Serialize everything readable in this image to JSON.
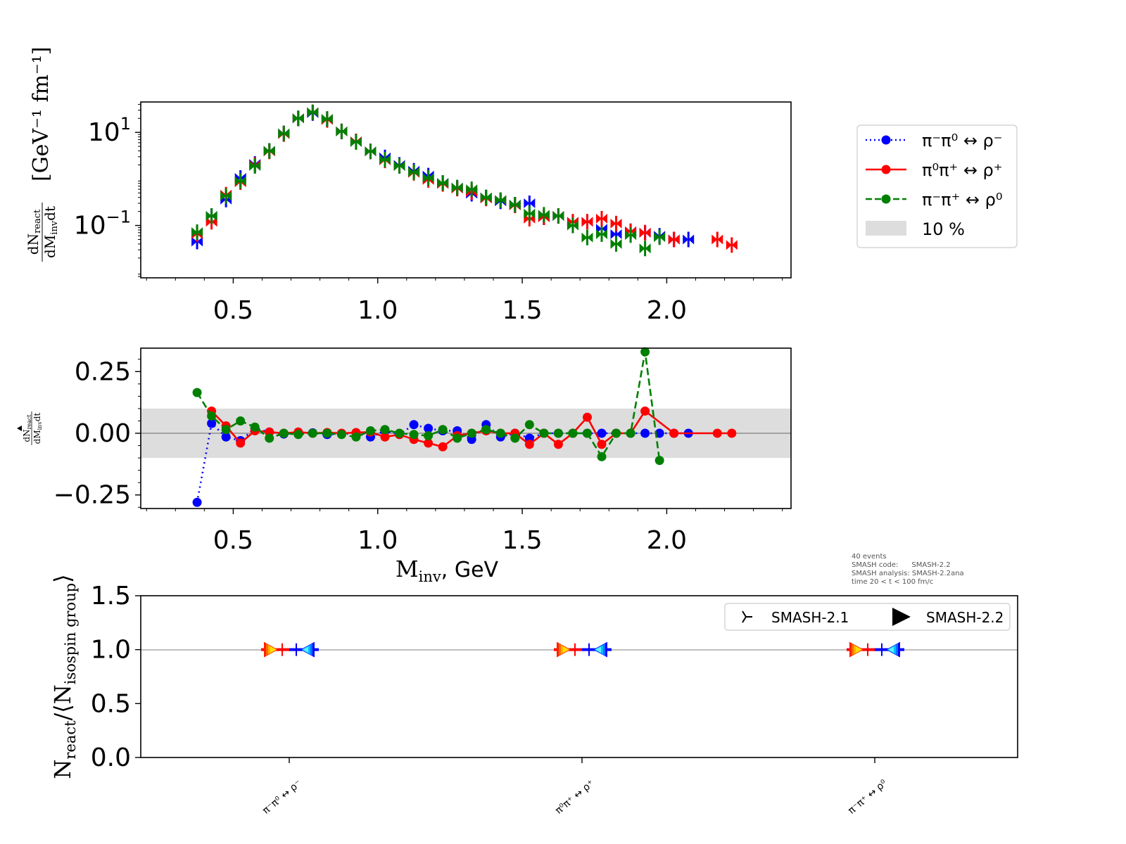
{
  "colors": {
    "series_1": "#0000ff",
    "series_2": "#ff0000",
    "series_3": "#008000",
    "band": "#dddddd",
    "zero_line": "#808080",
    "axes": "#000000"
  },
  "legend": {
    "entries": [
      {
        "label": "π⁻π⁰ ↔ ρ⁻",
        "style": "dotted",
        "color": "#0000ff"
      },
      {
        "label": "π⁰π⁺ ↔ ρ⁺",
        "style": "solid",
        "color": "#ff0000"
      },
      {
        "label": "π⁻π⁺ ↔ ρ⁰",
        "style": "dashed",
        "color": "#008000"
      },
      {
        "label": "10 %",
        "style": "patch",
        "color": "#dddddd"
      }
    ]
  },
  "version_legend": {
    "entries": [
      {
        "label": "SMASH-2.1",
        "marker": "tri_right-icon"
      },
      {
        "label": "SMASH-2.2",
        "marker": "triangle_right-icon"
      }
    ]
  },
  "info_text": [
    "40 events",
    "SMASH code:      SMASH-2.2",
    "SMASH analysis: SMASH-2.2ana",
    "time 20 < t < 100 fm/c"
  ],
  "chart_data": [
    {
      "type": "scatter",
      "panel": "top",
      "yscale": "log",
      "ylim": [
        0.0075,
        45
      ],
      "xlim": [
        0.18,
        2.43
      ],
      "ylabel_main": "dN",
      "ylabel_main_sub": "react",
      "ylabel_den": "dM",
      "ylabel_den_sub": "inv",
      "ylabel_den_tail": "dt",
      "ylabel_units": "[GeV⁻¹ fm⁻¹]",
      "y_tick_labels": [
        {
          "v": 10,
          "base": "10",
          "exp": "1"
        },
        {
          "v": 0.1,
          "base": "10",
          "exp": "−1"
        }
      ],
      "x_tick_labels": [
        "0.5",
        "1.0",
        "1.5",
        "2.0"
      ],
      "x_ticks": [
        0.5,
        1.0,
        1.5,
        2.0
      ],
      "series": [
        {
          "name": "π⁻π⁰ ↔ ρ⁻",
          "x": [
            0.375,
            0.425,
            0.475,
            0.525,
            0.575,
            0.625,
            0.675,
            0.725,
            0.775,
            0.825,
            0.875,
            0.925,
            0.975,
            1.025,
            1.075,
            1.125,
            1.175,
            1.225,
            1.275,
            1.325,
            1.375,
            1.425,
            1.475,
            1.525,
            1.575,
            1.625,
            1.675,
            1.725,
            1.775,
            1.825,
            1.875,
            1.925,
            1.975,
            2.025,
            2.075
          ],
          "y": [
            0.045,
            0.16,
            0.36,
            1.05,
            2.1,
            4.0,
            9.5,
            20,
            26,
            19,
            10.5,
            6.4,
            3.9,
            2.9,
            2.0,
            1.5,
            1.18,
            0.82,
            0.65,
            0.48,
            0.4,
            0.33,
            0.28,
            0.3,
            0.15,
            0.16,
            0.12,
            0.12,
            0.085,
            0.065,
            0.075,
            0.07,
            0.06,
            0.05,
            0.05
          ]
        },
        {
          "name": "π⁰π⁺ ↔ ρ⁺",
          "x": [
            0.375,
            0.425,
            0.475,
            0.525,
            0.575,
            0.625,
            0.675,
            0.725,
            0.775,
            0.825,
            0.875,
            0.925,
            0.975,
            1.025,
            1.075,
            1.125,
            1.175,
            1.225,
            1.275,
            1.325,
            1.375,
            1.425,
            1.475,
            1.525,
            1.575,
            1.625,
            1.675,
            1.725,
            1.775,
            1.825,
            1.875,
            1.925,
            2.025,
            2.175,
            2.225
          ],
          "y": [
            0.065,
            0.12,
            0.46,
            0.85,
            2.0,
            3.9,
            9.2,
            20,
            27,
            18.5,
            10.5,
            6.4,
            3.9,
            2.5,
            1.9,
            1.35,
            0.95,
            0.78,
            0.62,
            0.52,
            0.38,
            0.35,
            0.27,
            0.14,
            0.15,
            0.16,
            0.12,
            0.12,
            0.14,
            0.11,
            0.075,
            0.07,
            0.05,
            0.05,
            0.038
          ]
        },
        {
          "name": "π⁻π⁺ ↔ ρ⁰",
          "x": [
            0.375,
            0.425,
            0.475,
            0.525,
            0.575,
            0.625,
            0.675,
            0.725,
            0.775,
            0.825,
            0.875,
            0.925,
            0.975,
            1.025,
            1.075,
            1.125,
            1.175,
            1.225,
            1.275,
            1.325,
            1.375,
            1.425,
            1.475,
            1.525,
            1.575,
            1.625,
            1.675,
            1.725,
            1.775,
            1.825,
            1.875,
            1.925,
            1.975
          ],
          "y": [
            0.072,
            0.16,
            0.43,
            0.9,
            1.9,
            4.0,
            9.5,
            20,
            27,
            19.5,
            10.5,
            6.2,
            3.9,
            2.6,
            1.9,
            1.4,
            1.05,
            0.82,
            0.65,
            0.6,
            0.4,
            0.35,
            0.28,
            0.18,
            0.17,
            0.16,
            0.1,
            0.055,
            0.065,
            0.04,
            0.062,
            0.032,
            0.056
          ]
        }
      ]
    },
    {
      "type": "line",
      "panel": "middle",
      "ylim": [
        -0.305,
        0.345
      ],
      "xlim": [
        0.18,
        2.43
      ],
      "band": [
        -0.1,
        0.1
      ],
      "xlabel": "M",
      "xlabel_sub": "inv",
      "xlabel_tail": ", GeV",
      "ylabel_main": "dN",
      "ylabel_main_sub": "react",
      "ylabel_den": "dM",
      "ylabel_den_sub": "inv",
      "ylabel_den_tail": "dt",
      "y_ticks": [
        -0.25,
        0.0,
        0.25
      ],
      "y_tick_labels": [
        "−0.25",
        "0.00",
        "0.25"
      ],
      "x_ticks": [
        0.5,
        1.0,
        1.5,
        2.0
      ],
      "x_tick_labels": [
        "0.5",
        "1.0",
        "1.5",
        "2.0"
      ],
      "series": [
        {
          "name": "π⁻π⁰ ↔ ρ⁻",
          "x": [
            0.375,
            0.425,
            0.475,
            0.525,
            0.575,
            0.625,
            0.675,
            0.725,
            0.775,
            0.825,
            0.875,
            0.925,
            0.975,
            1.025,
            1.075,
            1.125,
            1.175,
            1.225,
            1.275,
            1.325,
            1.375,
            1.425,
            1.475,
            1.525,
            1.575,
            1.625,
            1.675,
            1.725,
            1.775,
            1.825,
            1.875,
            1.925,
            1.975,
            2.025,
            2.075
          ],
          "y": [
            -0.28,
            0.04,
            -0.015,
            -0.03,
            0.02,
            0.005,
            -0.003,
            0.003,
            0.002,
            -0.005,
            -0.003,
            0.0,
            -0.015,
            0.01,
            -0.005,
            0.035,
            0.02,
            0.01,
            0.01,
            -0.025,
            0.035,
            -0.015,
            0.0,
            -0.02,
            0.0,
            0.0,
            0.0,
            0.0,
            0.0,
            0.0,
            0.0,
            0.0,
            0.0,
            0.0,
            0.0
          ]
        },
        {
          "name": "π⁰π⁺ ↔ ρ⁺",
          "x": [
            0.375,
            0.425,
            0.475,
            0.525,
            0.575,
            0.625,
            0.675,
            0.725,
            0.775,
            0.825,
            0.875,
            0.925,
            0.975,
            1.025,
            1.075,
            1.125,
            1.175,
            1.225,
            1.275,
            1.325,
            1.375,
            1.425,
            1.475,
            1.525,
            1.575,
            1.625,
            1.675,
            1.725,
            1.775,
            1.825,
            1.875,
            1.925,
            2.025,
            2.175,
            2.225
          ],
          "y": [
            null,
            0.09,
            0.03,
            -0.04,
            0.01,
            0.005,
            0.0,
            0.005,
            0.0,
            0.003,
            0.0,
            0.003,
            0.005,
            -0.015,
            -0.005,
            -0.025,
            -0.04,
            -0.055,
            -0.01,
            0.0,
            0.01,
            0.0,
            0.0,
            -0.045,
            0.0,
            -0.045,
            0.0,
            0.065,
            -0.045,
            0.0,
            0.0,
            0.09,
            0.0,
            0.0,
            0.0
          ]
        },
        {
          "name": "π⁻π⁺ ↔ ρ⁰",
          "x": [
            0.375,
            0.425,
            0.475,
            0.525,
            0.575,
            0.625,
            0.675,
            0.725,
            0.775,
            0.825,
            0.875,
            0.925,
            0.975,
            1.025,
            1.075,
            1.125,
            1.175,
            1.225,
            1.275,
            1.325,
            1.375,
            1.425,
            1.475,
            1.525,
            1.575,
            1.625,
            1.675,
            1.725,
            1.775,
            1.825,
            1.875,
            1.925,
            1.975
          ],
          "y": [
            0.165,
            0.07,
            0.015,
            0.05,
            0.025,
            -0.02,
            0.0,
            -0.005,
            0.0,
            0.0,
            -0.005,
            -0.015,
            0.01,
            0.015,
            0.0,
            -0.005,
            -0.01,
            0.015,
            -0.02,
            0.0,
            0.015,
            0.0,
            -0.02,
            0.035,
            0.0,
            0.0,
            0.0,
            0.0,
            -0.095,
            0.0,
            0.0,
            0.33,
            -0.11
          ]
        }
      ]
    },
    {
      "type": "scatter",
      "panel": "bottom",
      "ylim": [
        0.0,
        1.5
      ],
      "y_ticks": [
        0.0,
        0.5,
        1.0,
        1.5
      ],
      "y_tick_labels": [
        "0.0",
        "0.5",
        "1.0",
        "1.5"
      ],
      "ylabel_main": "N",
      "ylabel_main_sub": "react",
      "ylabel_den": "/⟨N",
      "ylabel_den_sub": "isospin group",
      "ylabel_den_tail": "⟩",
      "categories": [
        "π⁻π⁰ ↔ ρ⁻",
        "π⁰π⁺ ↔ ρ⁺",
        "π⁻π⁺ ↔ ρ⁰"
      ],
      "series": [
        {
          "name": "SMASH-2.1",
          "values": [
            1.0,
            1.0,
            1.0
          ]
        },
        {
          "name": "SMASH-2.2",
          "values": [
            1.0,
            1.0,
            1.0
          ]
        }
      ]
    }
  ]
}
